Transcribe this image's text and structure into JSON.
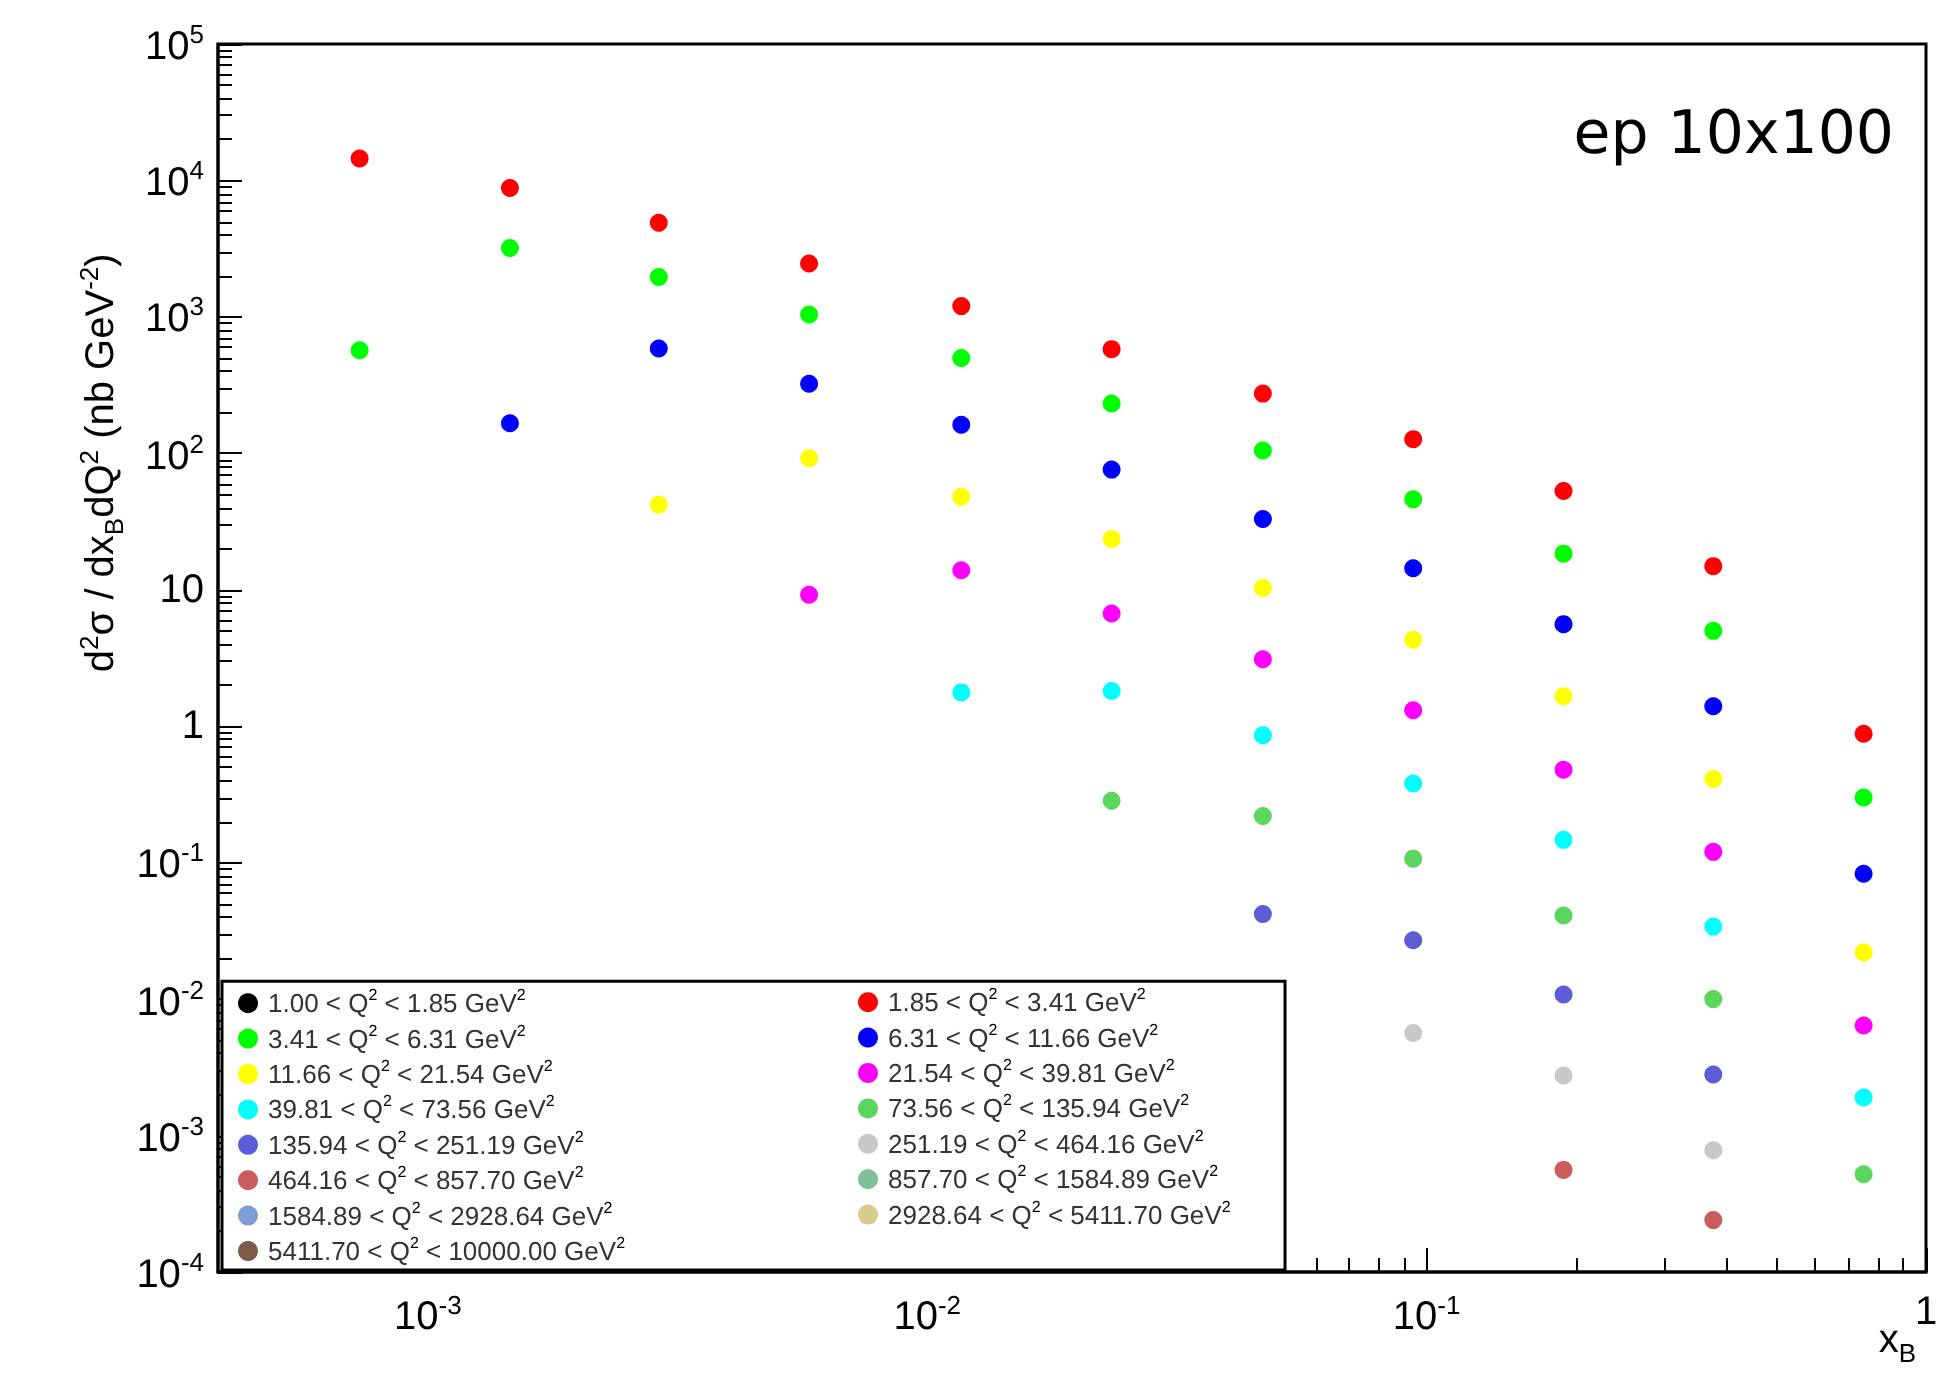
{
  "chart_data": {
    "type": "scatter",
    "xlabel": "x$_{B}$",
    "ylabel": "d$^{2}$σ / dx$_{B}$dQ$^{2}$ (nb GeV$^{-2}$)",
    "annotations": [
      "ep 10x100"
    ],
    "x": [
      0.00073,
      0.00146,
      0.0029,
      0.0058,
      0.0117,
      0.0234,
      0.047,
      0.094,
      0.188,
      0.375,
      0.75
    ],
    "log": "xy",
    "grid": false,
    "legend": "bottom left",
    "marker": "circle",
    "xlim": [
      0.00038,
      1
    ],
    "xticks": [
      {
        "value": 0.001,
        "label": "10$^{-3}$"
      },
      {
        "value": 0.01,
        "label": "10$^{-2}$"
      },
      {
        "value": 0.1,
        "label": "10$^{-1}$"
      },
      1
    ],
    "ylim": [
      0.0001,
      100000
    ],
    "yticks": [
      {
        "value": 0.0001,
        "label": "10$^{-4}$"
      },
      {
        "value": 0.001,
        "label": "10$^{-3}$"
      },
      {
        "value": 0.01,
        "label": "10$^{-2}$"
      },
      {
        "value": 0.1,
        "label": "10$^{-1}$"
      },
      1,
      10,
      {
        "value": 100,
        "label": "10$^{2}$"
      },
      {
        "value": 1000,
        "label": "10$^{3}$"
      },
      {
        "value": 10000,
        "label": "10$^{4}$"
      },
      {
        "value": 100000,
        "label": "10$^{5}$"
      }
    ],
    "series": [
      {
        "name": "1.00 < Q$^{2}$ < 1.85 GeV$^{2}$",
        "color": "#000000",
        "values": [
          null,
          null,
          null,
          null,
          null,
          null,
          null,
          null,
          null,
          null,
          null
        ]
      },
      {
        "name": "1.85 < Q$^{2}$ < 3.41 GeV$^{2}$",
        "color": "#ff0000",
        "values": [
          14500,
          8800,
          4900,
          2460,
          1200,
          580,
          274,
          127,
          53,
          14.9,
          0.88
        ]
      },
      {
        "name": "3.41 < Q$^{2}$ < 6.31 GeV$^{2}$",
        "color": "#00ff00",
        "values": [
          570,
          3200,
          1960,
          1040,
          500,
          232,
          105,
          46,
          18.4,
          5.0,
          0.3
        ]
      },
      {
        "name": "6.31 < Q$^{2}$ < 11.66 GeV$^{2}$",
        "color": "#0000ff",
        "values": [
          null,
          166,
          586,
          324,
          162,
          76,
          33,
          14.4,
          5.6,
          1.4,
          0.083
        ]
      },
      {
        "name": "11.66 < Q$^{2}$ < 21.54 GeV$^{2}$",
        "color": "#ffff00",
        "values": [
          null,
          null,
          42,
          92,
          48,
          23.6,
          10.3,
          4.3,
          1.66,
          0.41,
          0.022
        ]
      },
      {
        "name": "21.54 < Q$^{2}$ < 39.81 GeV$^{2}$",
        "color": "#ff00ff",
        "values": [
          null,
          null,
          null,
          9.2,
          13.9,
          6.7,
          3.1,
          1.31,
          0.48,
          0.12,
          0.0064
        ]
      },
      {
        "name": "39.81 < Q$^{2}$ < 73.56 GeV$^{2}$",
        "color": "#00ffff",
        "values": [
          null,
          null,
          null,
          null,
          1.77,
          1.81,
          0.86,
          0.38,
          0.147,
          0.034,
          0.0019
        ]
      },
      {
        "name": "73.56 < Q$^{2}$ < 135.94 GeV$^{2}$",
        "color": "#5cd65c",
        "values": [
          null,
          null,
          null,
          null,
          null,
          0.284,
          0.22,
          0.107,
          0.041,
          0.01,
          0.00052
        ]
      },
      {
        "name": "135.94 < Q$^{2}$ < 251.19 GeV$^{2}$",
        "color": "#5c5cd6",
        "values": [
          null,
          null,
          null,
          null,
          null,
          null,
          0.042,
          0.027,
          0.0108,
          0.0028,
          null
        ]
      },
      {
        "name": "251.19 < Q$^{2}$ < 464.16 GeV$^{2}$",
        "color": "#c8c8c8",
        "values": [
          null,
          null,
          null,
          null,
          null,
          null,
          null,
          0.00565,
          0.00275,
          0.00078,
          null
        ]
      },
      {
        "name": "464.16 < Q$^{2}$ < 857.70 GeV$^{2}$",
        "color": "#cc5c5c",
        "values": [
          null,
          null,
          null,
          null,
          null,
          null,
          null,
          null,
          0.00056,
          0.00024,
          null
        ]
      },
      {
        "name": "857.70 < Q$^{2}$ < 1584.89 GeV$^{2}$",
        "color": "#7fbf9a",
        "values": [
          null,
          null,
          null,
          null,
          null,
          null,
          null,
          null,
          null,
          null,
          null
        ]
      },
      {
        "name": "1584.89 < Q$^{2}$ < 2928.64 GeV$^{2}$",
        "color": "#7f9fd4",
        "values": [
          null,
          null,
          null,
          null,
          null,
          null,
          null,
          null,
          null,
          null,
          null
        ]
      },
      {
        "name": "2928.64 < Q$^{2}$ < 5411.70 GeV$^{2}$",
        "color": "#d4cc8a",
        "values": [
          null,
          null,
          null,
          null,
          null,
          null,
          null,
          null,
          null,
          null,
          null
        ]
      },
      {
        "name": "5411.70 < Q$^{2}$ < 10000.00 GeV$^{2}$",
        "color": "#7f5a4a",
        "values": [
          null,
          null,
          null,
          null,
          null,
          null,
          null,
          null,
          null,
          null,
          null
        ]
      }
    ]
  }
}
